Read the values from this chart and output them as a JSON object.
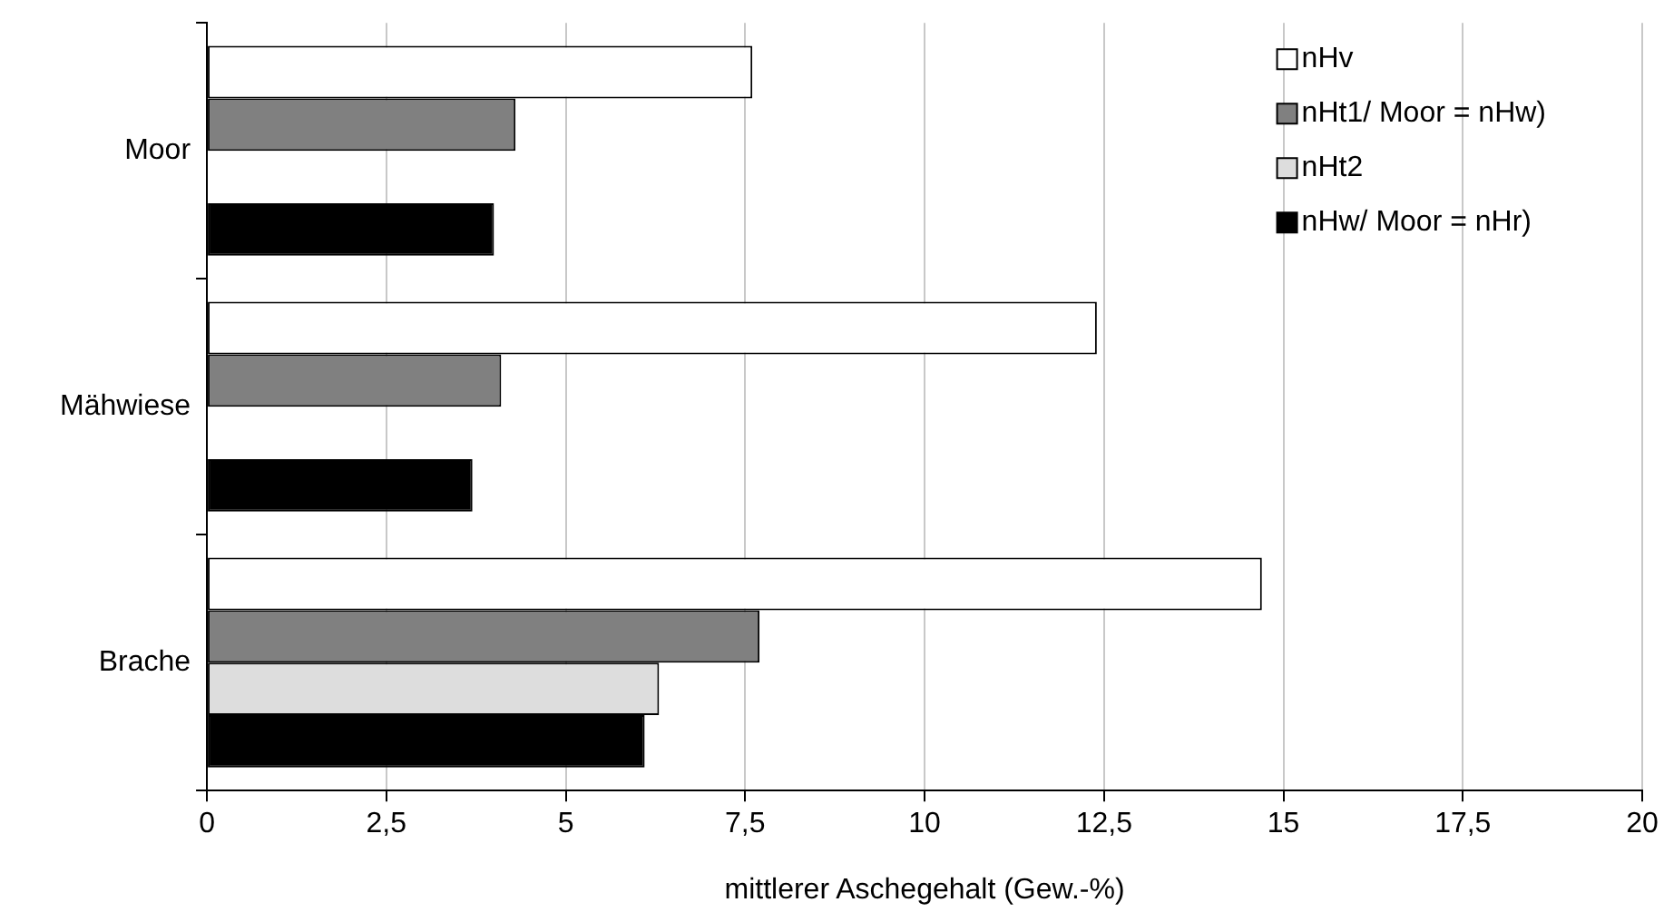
{
  "chart_data": {
    "type": "bar",
    "orientation": "horizontal",
    "xlabel": "mittlerer Aschegehalt (Gew.-%)",
    "categories": [
      "Moor",
      "Mähwiese",
      "Brache"
    ],
    "series": [
      {
        "name": "nHv",
        "color": "#ffffff",
        "values": [
          7.6,
          12.4,
          14.7
        ]
      },
      {
        "name": "nHt1/ Moor = nHw)",
        "color": "#808080",
        "values": [
          4.3,
          4.1,
          7.7
        ]
      },
      {
        "name": "nHt2",
        "color": "#dddddd",
        "values": [
          null,
          null,
          6.3
        ]
      },
      {
        "name": "nHw/ Moor = nHr)",
        "color": "#000000",
        "values": [
          4.0,
          3.7,
          6.1
        ]
      }
    ],
    "xlim": [
      0,
      20
    ],
    "xticks": [
      0,
      {
        "value": 2.5,
        "label": "2,5"
      },
      5,
      {
        "value": 7.5,
        "label": "7,5"
      },
      10,
      {
        "value": 12.5,
        "label": "12,5"
      },
      15,
      {
        "value": 17.5,
        "label": "17,5"
      },
      20
    ],
    "grid": "x",
    "legend": "top right"
  }
}
